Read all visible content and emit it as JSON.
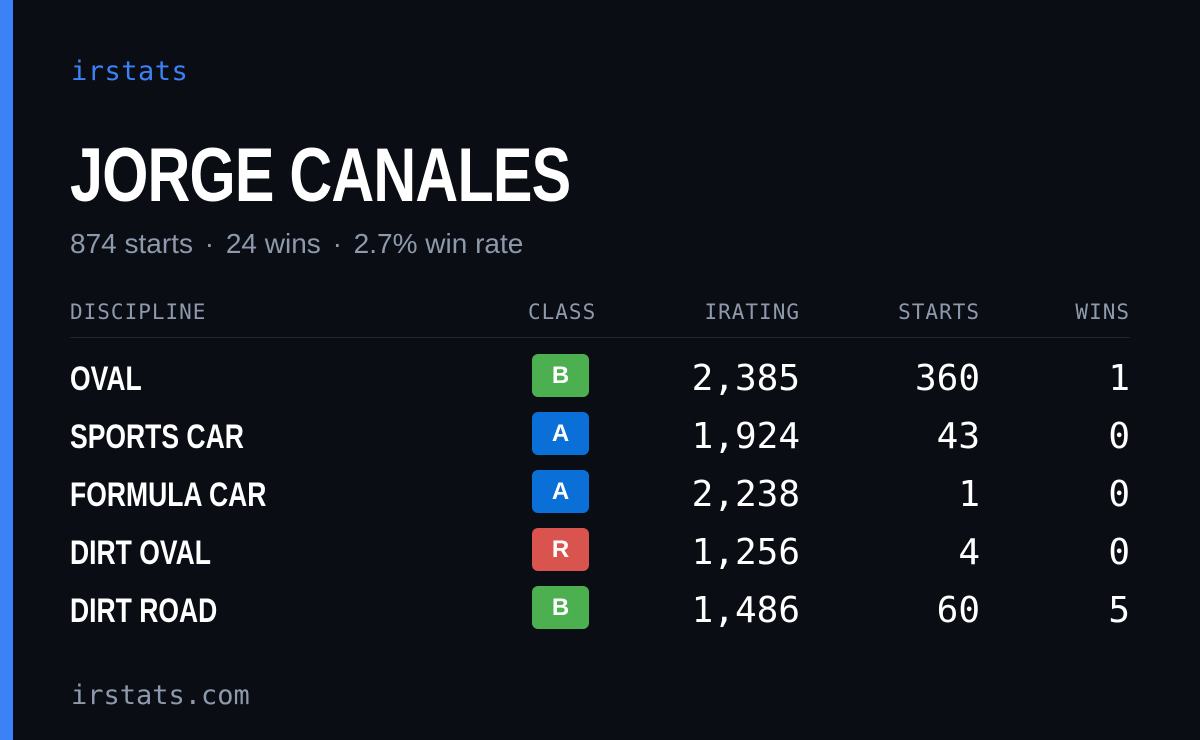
{
  "brand": "irstats",
  "driver": {
    "name": "JORGE CANALES",
    "starts": "874 starts",
    "wins": "24 wins",
    "win_rate": "2.7% win rate",
    "separator": "·"
  },
  "table": {
    "headers": {
      "discipline": "DISCIPLINE",
      "class": "CLASS",
      "irating": "IRATING",
      "starts": "STARTS",
      "wins": "WINS"
    },
    "rows": [
      {
        "discipline": "OVAL",
        "class": "B",
        "class_color": "#4caf50",
        "irating": "2,385",
        "starts": "360",
        "wins": "1"
      },
      {
        "discipline": "SPORTS CAR",
        "class": "A",
        "class_color": "#0a6fd6",
        "irating": "1,924",
        "starts": "43",
        "wins": "0"
      },
      {
        "discipline": "FORMULA CAR",
        "class": "A",
        "class_color": "#0a6fd6",
        "irating": "2,238",
        "starts": "1",
        "wins": "0"
      },
      {
        "discipline": "DIRT OVAL",
        "class": "R",
        "class_color": "#d9534f",
        "irating": "1,256",
        "starts": "4",
        "wins": "0"
      },
      {
        "discipline": "DIRT ROAD",
        "class": "B",
        "class_color": "#4caf50",
        "irating": "1,486",
        "starts": "60",
        "wins": "5"
      }
    ]
  },
  "footer": "irstats.com",
  "colors": {
    "background": "#0a0d14",
    "accent": "#3b82f6",
    "muted": "#8e99ab"
  }
}
